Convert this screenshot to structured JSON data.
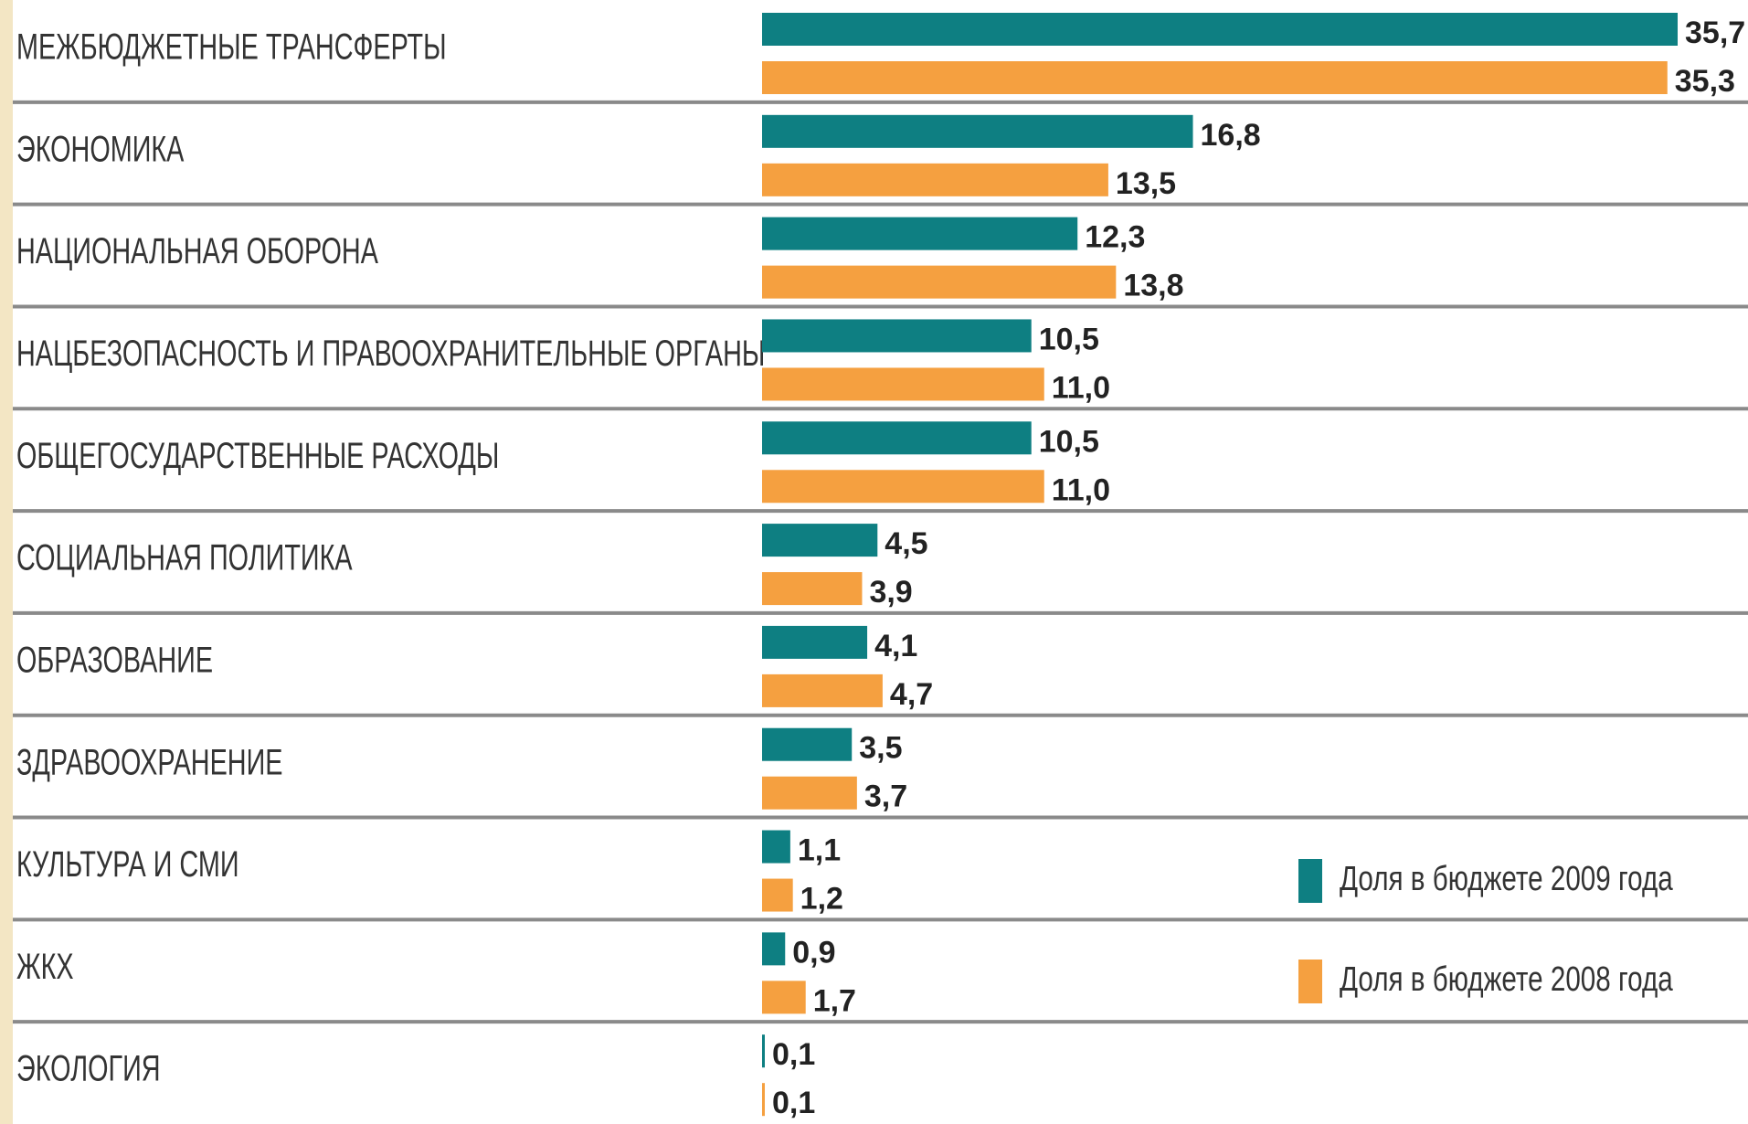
{
  "chart_data": {
    "type": "bar",
    "orientation": "horizontal",
    "categories": [
      "МЕЖБЮДЖЕТНЫЕ ТРАНСФЕРТЫ",
      "ЭКОНОМИКА",
      "НАЦИОНАЛЬНАЯ ОБОРОНА",
      "НАЦБЕЗОПАСНОСТЬ И ПРАВООХРАНИТЕЛЬНЫЕ ОРГАНЫ",
      "ОБЩЕГОСУДАРСТВЕННЫЕ РАСХОДЫ",
      "СОЦИАЛЬНАЯ ПОЛИТИКА",
      "ОБРАЗОВАНИЕ",
      "ЗДРАВООХРАНЕНИЕ",
      "КУЛЬТУРА И СМИ",
      "ЖКХ",
      "ЭКОЛОГИЯ"
    ],
    "series": [
      {
        "name": "Доля в бюджете 2009 года",
        "color": "#0e7f82",
        "values": [
          35.7,
          16.8,
          12.3,
          10.5,
          10.5,
          4.5,
          4.1,
          3.5,
          1.1,
          0.9,
          0.1
        ],
        "value_labels": [
          "35,7",
          "16,8",
          "12,3",
          "10,5",
          "10,5",
          "4,5",
          "4,1",
          "3,5",
          "1,1",
          "0,9",
          "0,1"
        ]
      },
      {
        "name": "Доля в бюджете 2008 года",
        "color": "#f5a040",
        "values": [
          35.3,
          13.5,
          13.8,
          11.0,
          11.0,
          3.9,
          4.7,
          3.7,
          1.2,
          1.7,
          0.1
        ],
        "value_labels": [
          "35,3",
          "13,5",
          "13,8",
          "11,0",
          "11,0",
          "3,9",
          "4,7",
          "3,7",
          "1,2",
          "1,7",
          "0,1"
        ]
      }
    ]
  }
}
